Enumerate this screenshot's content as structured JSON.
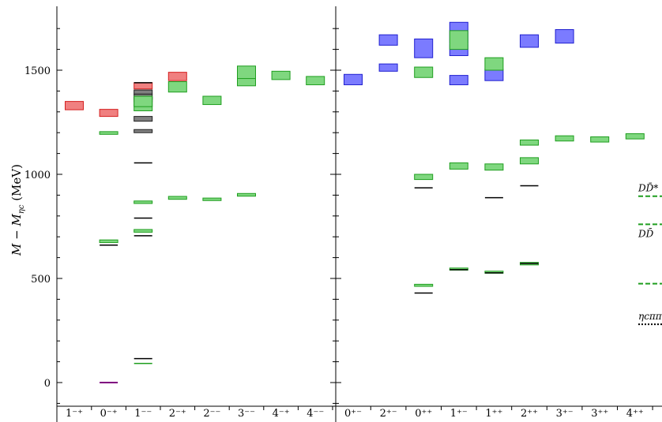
{
  "chart_data": {
    "type": "spectrum",
    "ylabel": "M − M_ηc (MeV)",
    "ylabel_parts": {
      "pre": "M − M",
      "sub": "ηc",
      "post": " (MeV)"
    },
    "ylim": [
      -100,
      1780
    ],
    "yticks": [
      "0",
      "500",
      "1000",
      "1500"
    ],
    "ytick_values": [
      0,
      500,
      1000,
      1500
    ],
    "panels": [
      {
        "name": "left",
        "categories": [
          "1⁻⁺",
          "0⁻⁺",
          "1⁻⁻",
          "2⁻⁺",
          "2⁻⁻",
          "3⁻⁻",
          "4⁻⁺",
          "4⁻⁻"
        ],
        "boxes": [
          {
            "cat": 0,
            "lo": 1310,
            "hi": 1350,
            "color": "red"
          },
          {
            "cat": 1,
            "lo": 1278,
            "hi": 1312,
            "color": "red"
          },
          {
            "cat": 2,
            "lo": 1410,
            "hi": 1440,
            "color": "red"
          },
          {
            "cat": 3,
            "lo": 1450,
            "hi": 1490,
            "color": "red"
          },
          {
            "cat": 1,
            "lo": 1192,
            "hi": 1205,
            "color": "green"
          },
          {
            "cat": 1,
            "lo": 672,
            "hi": 685,
            "color": "green"
          },
          {
            "cat": 2,
            "lo": 1385,
            "hi": 1405,
            "color": "gray"
          },
          {
            "cat": 2,
            "lo": 1360,
            "hi": 1385,
            "color": "gray"
          },
          {
            "cat": 2,
            "lo": 1345,
            "hi": 1370,
            "color": "gray"
          },
          {
            "cat": 2,
            "lo": 1255,
            "hi": 1278,
            "color": "gray"
          },
          {
            "cat": 2,
            "lo": 1200,
            "hi": 1215,
            "color": "gray"
          },
          {
            "cat": 2,
            "lo": 1305,
            "hi": 1340,
            "color": "green"
          },
          {
            "cat": 2,
            "lo": 1325,
            "hi": 1375,
            "color": "green"
          },
          {
            "cat": 2,
            "lo": 860,
            "hi": 872,
            "color": "green"
          },
          {
            "cat": 2,
            "lo": 722,
            "hi": 735,
            "color": "green"
          },
          {
            "cat": 3,
            "lo": 1395,
            "hi": 1445,
            "color": "green"
          },
          {
            "cat": 3,
            "lo": 880,
            "hi": 894,
            "color": "green"
          },
          {
            "cat": 4,
            "lo": 1335,
            "hi": 1375,
            "color": "green"
          },
          {
            "cat": 4,
            "lo": 874,
            "hi": 886,
            "color": "green"
          },
          {
            "cat": 5,
            "lo": 1440,
            "hi": 1520,
            "color": "green"
          },
          {
            "cat": 5,
            "lo": 1425,
            "hi": 1460,
            "color": "green"
          },
          {
            "cat": 5,
            "lo": 895,
            "hi": 908,
            "color": "green"
          },
          {
            "cat": 6,
            "lo": 1455,
            "hi": 1495,
            "color": "green"
          },
          {
            "cat": 7,
            "lo": 1430,
            "hi": 1470,
            "color": "green"
          }
        ],
        "lines": [
          {
            "cat": 1,
            "y": 660,
            "color": "black"
          },
          {
            "cat": 1,
            "y": 0,
            "color": "purple"
          },
          {
            "cat": 2,
            "y": 1440,
            "color": "black"
          },
          {
            "cat": 2,
            "y": 1055,
            "color": "black"
          },
          {
            "cat": 2,
            "y": 790,
            "color": "black"
          },
          {
            "cat": 2,
            "y": 705,
            "color": "black"
          },
          {
            "cat": 2,
            "y": 115,
            "color": "black"
          },
          {
            "cat": 2,
            "y": 92,
            "color": "green"
          }
        ]
      },
      {
        "name": "right",
        "categories": [
          "0⁺⁻",
          "2⁺⁻",
          "0⁺⁺",
          "1⁺⁻",
          "1⁺⁺",
          "2⁺⁺",
          "3⁺⁻",
          "3⁺⁺",
          "4⁺⁺"
        ],
        "boxes": [
          {
            "cat": 0,
            "lo": 1430,
            "hi": 1480,
            "color": "blue"
          },
          {
            "cat": 1,
            "lo": 1620,
            "hi": 1670,
            "color": "blue"
          },
          {
            "cat": 1,
            "lo": 1495,
            "hi": 1530,
            "color": "blue"
          },
          {
            "cat": 2,
            "lo": 1560,
            "hi": 1650,
            "color": "blue"
          },
          {
            "cat": 3,
            "lo": 1630,
            "hi": 1730,
            "color": "blue"
          },
          {
            "cat": 3,
            "lo": 1570,
            "hi": 1625,
            "color": "blue"
          },
          {
            "cat": 3,
            "lo": 1430,
            "hi": 1475,
            "color": "blue"
          },
          {
            "cat": 4,
            "lo": 1450,
            "hi": 1505,
            "color": "blue"
          },
          {
            "cat": 5,
            "lo": 1610,
            "hi": 1670,
            "color": "blue"
          },
          {
            "cat": 6,
            "lo": 1630,
            "hi": 1695,
            "color": "blue"
          },
          {
            "cat": 2,
            "lo": 1465,
            "hi": 1515,
            "color": "green"
          },
          {
            "cat": 3,
            "lo": 1600,
            "hi": 1690,
            "color": "green"
          },
          {
            "cat": 4,
            "lo": 1500,
            "hi": 1560,
            "color": "green"
          },
          {
            "cat": 2,
            "lo": 975,
            "hi": 1000,
            "color": "green"
          },
          {
            "cat": 3,
            "lo": 1025,
            "hi": 1055,
            "color": "green"
          },
          {
            "cat": 4,
            "lo": 1020,
            "hi": 1050,
            "color": "green"
          },
          {
            "cat": 5,
            "lo": 1140,
            "hi": 1165,
            "color": "green"
          },
          {
            "cat": 5,
            "lo": 1050,
            "hi": 1080,
            "color": "green"
          },
          {
            "cat": 6,
            "lo": 1160,
            "hi": 1185,
            "color": "green"
          },
          {
            "cat": 7,
            "lo": 1155,
            "hi": 1180,
            "color": "green"
          },
          {
            "cat": 8,
            "lo": 1170,
            "hi": 1195,
            "color": "green"
          },
          {
            "cat": 2,
            "lo": 462,
            "hi": 472,
            "color": "green"
          },
          {
            "cat": 3,
            "lo": 540,
            "hi": 550,
            "color": "green"
          },
          {
            "cat": 4,
            "lo": 525,
            "hi": 535,
            "color": "green"
          },
          {
            "cat": 5,
            "lo": 565,
            "hi": 577,
            "color": "green"
          }
        ],
        "lines": [
          {
            "cat": 2,
            "y": 935,
            "color": "black"
          },
          {
            "cat": 2,
            "y": 430,
            "color": "black"
          },
          {
            "cat": 3,
            "y": 542,
            "color": "black"
          },
          {
            "cat": 4,
            "y": 888,
            "color": "black"
          },
          {
            "cat": 4,
            "y": 527,
            "color": "black"
          },
          {
            "cat": 5,
            "y": 945,
            "color": "black"
          },
          {
            "cat": 5,
            "y": 572,
            "color": "black"
          }
        ],
        "thresholds": [
          {
            "label": "DD̄*",
            "y": 895,
            "style": "dashed",
            "color": "green"
          },
          {
            "label": "DD̄",
            "y": 760,
            "style": "dashed",
            "color": "green"
          },
          {
            "label": "",
            "y": 475,
            "style": "dashed",
            "color": "green"
          },
          {
            "label": "ηcππ",
            "y": 280,
            "style": "dotted",
            "color": "black"
          }
        ]
      }
    ],
    "colors": {
      "red": {
        "fill": "#f08080",
        "stroke": "#d42020"
      },
      "green": {
        "fill": "#7fd77f",
        "stroke": "#1f9e1f"
      },
      "blue": {
        "fill": "#7b7bff",
        "stroke": "#2020d0"
      },
      "gray": {
        "fill": "#808080",
        "stroke": "#202020"
      },
      "black": {
        "fill": "#000000",
        "stroke": "#000000"
      },
      "purple": {
        "fill": "#800080",
        "stroke": "#800080"
      }
    }
  }
}
